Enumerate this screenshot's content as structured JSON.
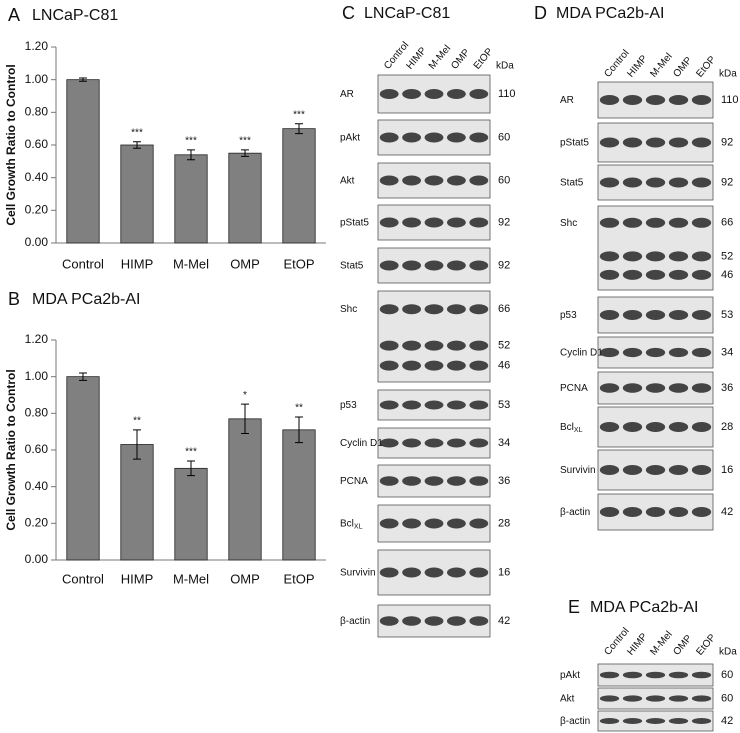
{
  "chart_data": [
    {
      "type": "bar",
      "panel": "A",
      "title": "LNCaP-C81",
      "y_label": "Cell Growth Ratio to Control",
      "categories": [
        "Control",
        "HIMP",
        "M-Mel",
        "OMP",
        "EtOP"
      ],
      "series": [
        {
          "color": "#808080",
          "values": [
            1.0,
            0.6,
            0.54,
            0.55,
            0.7
          ],
          "errors": [
            0.01,
            0.02,
            0.03,
            0.02,
            0.03
          ]
        }
      ],
      "annotations": [
        null,
        "***",
        "***",
        "***",
        "***"
      ],
      "ylim": [
        0,
        1.2
      ],
      "yticks": [
        {
          "value": 0,
          "label": "0.00"
        },
        {
          "value": 0.2,
          "label": "0.20"
        },
        {
          "value": 0.4,
          "label": "0.40"
        },
        {
          "value": 0.6,
          "label": "0.60"
        },
        {
          "value": 0.8,
          "label": "0.80"
        },
        {
          "value": 1.0,
          "label": "1.00"
        },
        {
          "value": 1.2,
          "label": "1.20"
        }
      ]
    },
    {
      "type": "bar",
      "panel": "B",
      "title": "MDA PCa2b-AI",
      "y_label": "Cell Growth Ratio to Control",
      "categories": [
        "Control",
        "HIMP",
        "M-Mel",
        "OMP",
        "EtOP"
      ],
      "series": [
        {
          "color": "#808080",
          "values": [
            1.0,
            0.63,
            0.5,
            0.77,
            0.71
          ],
          "errors": [
            0.02,
            0.08,
            0.04,
            0.08,
            0.07
          ]
        }
      ],
      "annotations": [
        null,
        "**",
        "***",
        "*",
        "**"
      ],
      "ylim": [
        0,
        1.2
      ],
      "yticks": [
        {
          "value": 0,
          "label": "0.00"
        },
        {
          "value": 0.2,
          "label": "0.20"
        },
        {
          "value": 0.4,
          "label": "0.40"
        },
        {
          "value": 0.6,
          "label": "0.60"
        },
        {
          "value": 0.8,
          "label": "0.80"
        },
        {
          "value": 1.0,
          "label": "1.00"
        },
        {
          "value": 1.2,
          "label": "1.20"
        }
      ]
    }
  ],
  "blots": [
    {
      "panel": "C",
      "title": "LNCaP-C81",
      "lanes": [
        "Control",
        "HIMP",
        "M-Mel",
        "OMP",
        "EtOP"
      ],
      "unit": "kDa",
      "rows": [
        {
          "label": "AR",
          "kda": [
            110
          ]
        },
        {
          "label": "pAkt",
          "kda": [
            60
          ]
        },
        {
          "label": "Akt",
          "kda": [
            60
          ]
        },
        {
          "label": "pStat5",
          "kda": [
            92
          ]
        },
        {
          "label": "Stat5",
          "kda": [
            92
          ]
        },
        {
          "label": "Shc",
          "kda": [
            66,
            52,
            46
          ]
        },
        {
          "label": "p53",
          "kda": [
            53
          ]
        },
        {
          "label": "Cyclin D1",
          "kda": [
            34
          ]
        },
        {
          "label": "PCNA",
          "kda": [
            36
          ]
        },
        {
          "label": "Bcl",
          "subscript": "XL",
          "kda": [
            28
          ]
        },
        {
          "label": "Survivin",
          "kda": [
            16
          ]
        },
        {
          "label": "β-actin",
          "kda": [
            42
          ]
        }
      ]
    },
    {
      "panel": "D",
      "title": "MDA PCa2b-AI",
      "lanes": [
        "Control",
        "HIMP",
        "M-Mel",
        "OMP",
        "EtOP"
      ],
      "unit": "kDa",
      "rows": [
        {
          "label": "AR",
          "kda": [
            110
          ]
        },
        {
          "label": "pStat5",
          "kda": [
            92
          ]
        },
        {
          "label": "Stat5",
          "kda": [
            92
          ]
        },
        {
          "label": "Shc",
          "kda": [
            66,
            52,
            46
          ]
        },
        {
          "label": "p53",
          "kda": [
            53
          ]
        },
        {
          "label": "Cyclin D1",
          "kda": [
            34
          ]
        },
        {
          "label": "PCNA",
          "kda": [
            36
          ]
        },
        {
          "label": "Bcl",
          "subscript": "XL",
          "kda": [
            28
          ]
        },
        {
          "label": "Survivin",
          "kda": [
            16
          ]
        },
        {
          "label": "β-actin",
          "kda": [
            42
          ]
        }
      ]
    },
    {
      "panel": "E",
      "title": "MDA PCa2b-AI",
      "lanes": [
        "Control",
        "HIMP",
        "M-Mel",
        "OMP",
        "EtOP"
      ],
      "unit": "kDa",
      "rows": [
        {
          "label": "pAkt",
          "kda": [
            60
          ]
        },
        {
          "label": "Akt",
          "kda": [
            60
          ]
        },
        {
          "label": "β-actin",
          "kda": [
            42
          ]
        }
      ]
    }
  ]
}
